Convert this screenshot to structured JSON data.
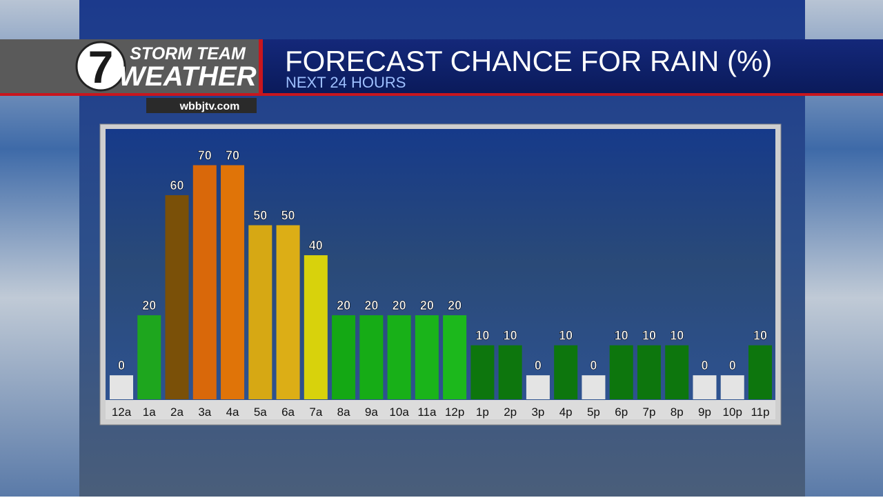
{
  "branding": {
    "logo": "7",
    "line1": "STORM TEAM",
    "line2": "WEATHER",
    "website": "wbbjtv.com"
  },
  "chart_data": {
    "type": "bar",
    "title": "FORECAST CHANCE FOR RAIN (%)",
    "subtitle": "NEXT 24 HOURS",
    "categories": [
      "12a",
      "1a",
      "2a",
      "3a",
      "4a",
      "5a",
      "6a",
      "7a",
      "8a",
      "9a",
      "10a",
      "11a",
      "12p",
      "1p",
      "2p",
      "3p",
      "4p",
      "5p",
      "6p",
      "7p",
      "8p",
      "9p",
      "10p",
      "11p"
    ],
    "values": [
      0,
      20,
      60,
      70,
      70,
      50,
      50,
      40,
      20,
      20,
      20,
      20,
      20,
      10,
      10,
      0,
      10,
      0,
      10,
      10,
      10,
      0,
      0,
      10
    ],
    "colors": [
      "#e4e4e4",
      "#1ea61e",
      "#7a5008",
      "#d9680a",
      "#e07408",
      "#d6a814",
      "#dcae16",
      "#d8d20c",
      "#14a814",
      "#16ac16",
      "#18b018",
      "#1ab41a",
      "#1cb81c",
      "#0d760d",
      "#0d760d",
      "#e4e4e4",
      "#0d760d",
      "#e4e4e4",
      "#0d760d",
      "#0d760d",
      "#0d760d",
      "#e4e4e4",
      "#e4e4e4",
      "#0d760d"
    ],
    "ylim": [
      -8,
      80
    ]
  }
}
